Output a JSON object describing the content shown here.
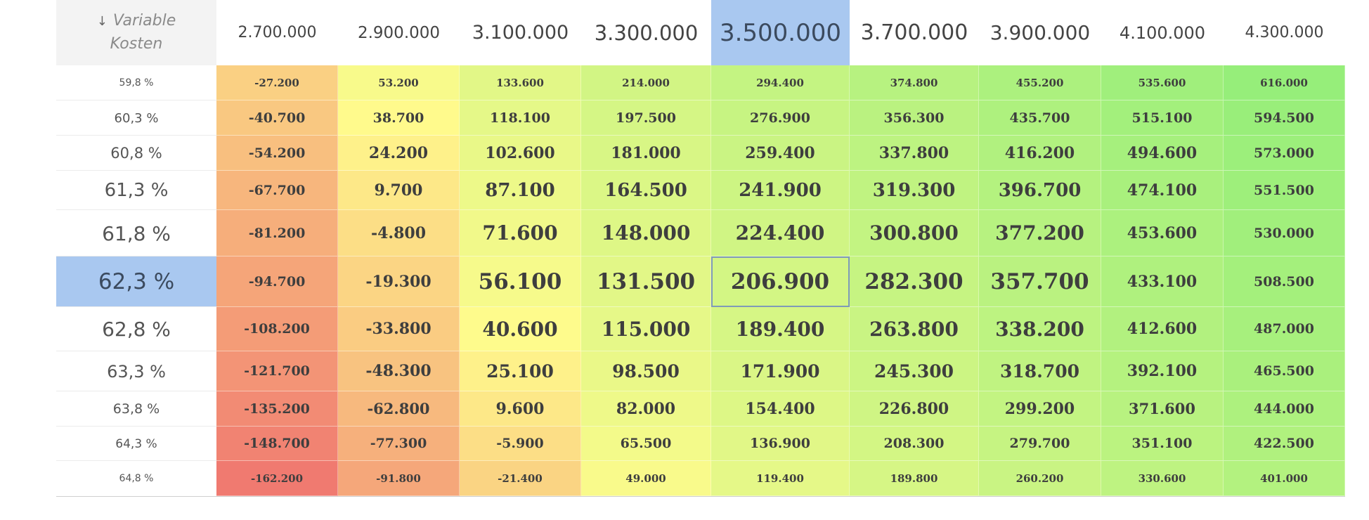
{
  "corner": {
    "line1": "Variable",
    "line2": "Kosten"
  },
  "columns": [
    "2.700.000",
    "2.900.000",
    "3.100.000",
    "3.300.000",
    "3.500.000",
    "3.700.000",
    "3.900.000",
    "4.100.000",
    "4.300.000"
  ],
  "selected_column_index": 4,
  "selected_row_index": 5,
  "rows": [
    {
      "label": "59,8 %",
      "values": [
        "-27.200",
        "53.200",
        "133.600",
        "214.000",
        "294.400",
        "374.800",
        "455.200",
        "535.600",
        "616.000"
      ]
    },
    {
      "label": "60,3 %",
      "values": [
        "-40.700",
        "38.700",
        "118.100",
        "197.500",
        "276.900",
        "356.300",
        "435.700",
        "515.100",
        "594.500"
      ]
    },
    {
      "label": "60,8 %",
      "values": [
        "-54.200",
        "24.200",
        "102.600",
        "181.000",
        "259.400",
        "337.800",
        "416.200",
        "494.600",
        "573.000"
      ]
    },
    {
      "label": "61,3 %",
      "values": [
        "-67.700",
        "9.700",
        "87.100",
        "164.500",
        "241.900",
        "319.300",
        "396.700",
        "474.100",
        "551.500"
      ]
    },
    {
      "label": "61,8 %",
      "values": [
        "-81.200",
        "-4.800",
        "71.600",
        "148.000",
        "224.400",
        "300.800",
        "377.200",
        "453.600",
        "530.000"
      ]
    },
    {
      "label": "62,3 %",
      "values": [
        "-94.700",
        "-19.300",
        "56.100",
        "131.500",
        "206.900",
        "282.300",
        "357.700",
        "433.100",
        "508.500"
      ]
    },
    {
      "label": "62,8 %",
      "values": [
        "-108.200",
        "-33.800",
        "40.600",
        "115.000",
        "189.400",
        "263.800",
        "338.200",
        "412.600",
        "487.000"
      ]
    },
    {
      "label": "63,3 %",
      "values": [
        "-121.700",
        "-48.300",
        "25.100",
        "98.500",
        "171.900",
        "245.300",
        "318.700",
        "392.100",
        "465.500"
      ]
    },
    {
      "label": "63,8 %",
      "values": [
        "-135.200",
        "-62.800",
        "9.600",
        "82.000",
        "154.400",
        "226.800",
        "299.200",
        "371.600",
        "444.000"
      ]
    },
    {
      "label": "64,3 %",
      "values": [
        "-148.700",
        "-77.300",
        "-5.900",
        "65.500",
        "136.900",
        "208.300",
        "279.700",
        "351.100",
        "422.500"
      ]
    },
    {
      "label": "64,8 %",
      "values": [
        "-162.200",
        "-91.800",
        "-21.400",
        "49.000",
        "119.400",
        "189.800",
        "260.200",
        "330.600",
        "401.000"
      ]
    }
  ],
  "colors": {
    "scale_low": "#f07a70",
    "scale_mid": "#fffb8c",
    "scale_high": "#96ee7a",
    "selection": "#a9c8f0"
  }
}
